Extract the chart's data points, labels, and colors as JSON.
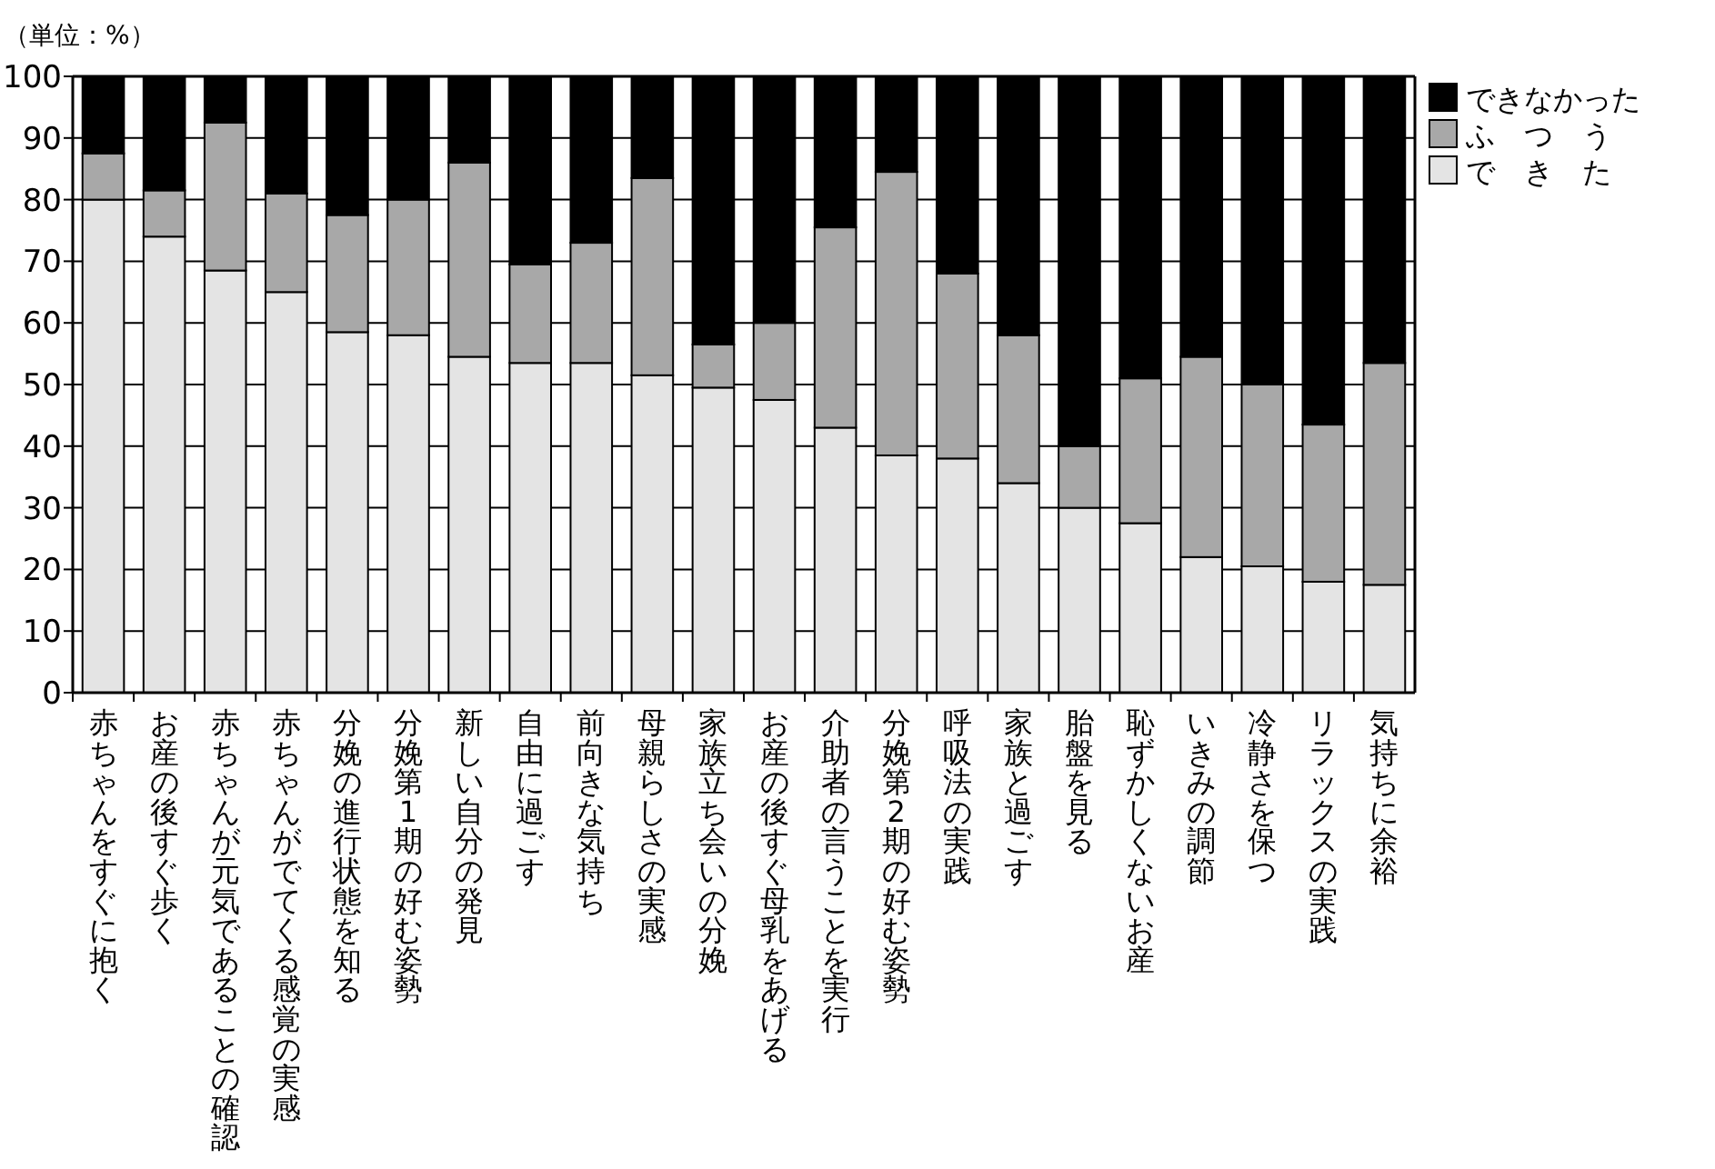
{
  "chart_data": {
    "type": "bar",
    "stacked": true,
    "ylabel": "（単位：%）",
    "categories": [
      "赤ちゃんをすぐに抱く",
      "お産の後すぐ歩く",
      "赤ちゃんが元気であることの確認",
      "赤ちゃんがでてくる感覚の実感",
      "分娩の進行状態を知る",
      "分娩第1期の好む姿勢",
      "新しい自分の発見",
      "自由に過ごす",
      "前向きな気持ち",
      "母親らしさの実感",
      "家族立ち会いの分娩",
      "お産の後すぐ母乳をあげる",
      "介助者の言うことを実行",
      "分娩第2期の好む姿勢",
      "呼吸法の実践",
      "家族と過ごす",
      "胎盤を見る",
      "恥ずかしくないお産",
      "いきみの調節",
      "冷静さを保つ",
      "リラックスの実践",
      "気持ちに余裕"
    ],
    "series": [
      {
        "name": "で　き　た",
        "color": "#e4e4e4",
        "values": [
          80,
          74,
          68.5,
          65,
          58.5,
          58,
          54.5,
          53.5,
          53.5,
          51.5,
          49.5,
          47.5,
          43,
          38.5,
          38,
          34,
          30,
          27.5,
          22,
          20.5,
          18,
          17.5
        ]
      },
      {
        "name": "ふ　つ　う",
        "color": "#a8a8a8",
        "values": [
          7.5,
          7.5,
          24,
          16,
          19,
          22,
          31.5,
          16,
          19.5,
          32,
          7,
          12.5,
          32.5,
          46,
          30,
          24,
          10,
          23.5,
          32.5,
          29.5,
          25.5,
          36
        ]
      },
      {
        "name": "できなかった",
        "color": "#000000",
        "values": [
          12.5,
          18.5,
          7.5,
          19,
          22.5,
          20,
          14,
          30.5,
          27,
          16.5,
          43.5,
          40,
          24.5,
          15.5,
          32,
          42,
          60,
          49,
          45.5,
          50,
          56.5,
          46.5
        ]
      }
    ],
    "ylim": [
      0,
      100
    ],
    "yticks": [
      0,
      10,
      20,
      30,
      40,
      50,
      60,
      70,
      80,
      90,
      100
    ],
    "grid": "y",
    "legend": "top right"
  }
}
